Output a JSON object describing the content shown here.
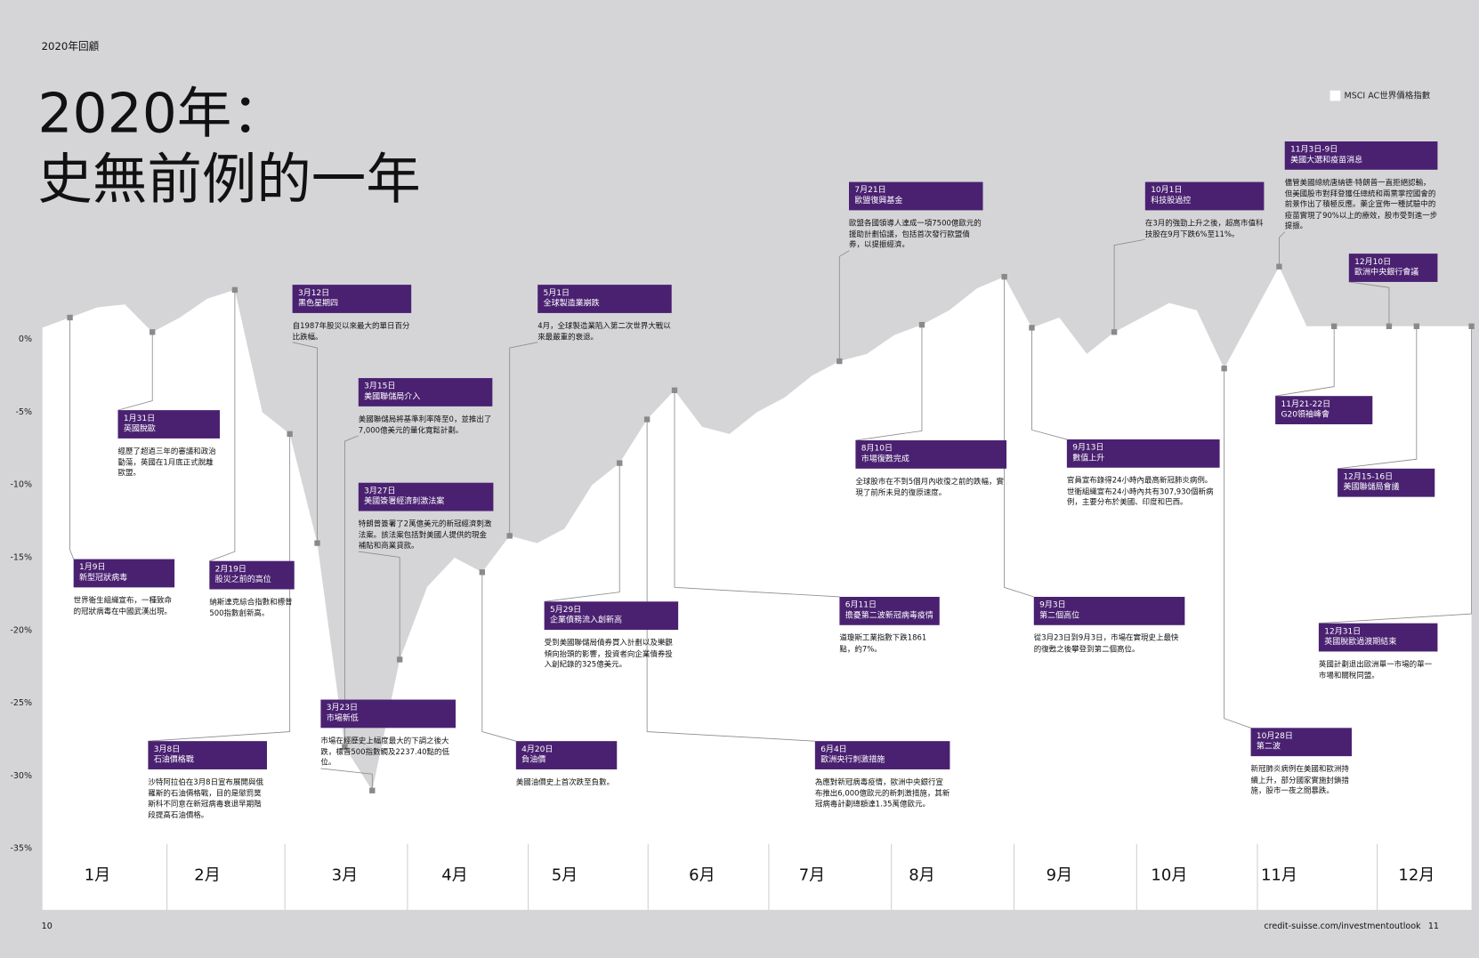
{
  "header": "2020年回顧",
  "title": [
    "2020年：",
    "史無前例的一年"
  ],
  "footer": {
    "left_page": "10",
    "url": "credit-suisse.com/investmentoutlook",
    "right_page": "11"
  },
  "chart_data": {
    "type": "area",
    "categories": [
      null,
      null,
      "1月",
      null,
      null,
      null,
      "2月",
      null,
      null,
      null,
      null,
      "3月",
      null,
      null,
      null,
      "4月",
      null,
      null,
      null,
      "5月",
      null,
      null,
      null,
      null,
      "6月",
      null,
      null,
      null,
      "7月",
      null,
      null,
      null,
      "8月",
      null,
      null,
      null,
      null,
      "9月",
      null,
      null,
      null,
      "10月",
      null,
      null,
      null,
      "11月",
      null,
      null,
      null,
      null,
      "12月",
      null,
      null
    ],
    "series": [
      {
        "name": "MSCI AC世界價格指數",
        "color": "#ffffff",
        "values": [
          0.8,
          1.5,
          2.2,
          2.4,
          0.5,
          1.5,
          2.8,
          3.4,
          -5,
          -6.5,
          -14,
          -28,
          -31,
          -22,
          -17,
          -15,
          -16,
          -13.5,
          -14,
          -13,
          -10,
          -8.5,
          -5.5,
          -3.5,
          -6,
          -6.5,
          -5,
          -4,
          -2.5,
          -1.5,
          -1,
          0.3,
          1,
          2,
          3.5,
          4.3,
          0.8,
          1.5,
          -1,
          0.5,
          1.5,
          2.5,
          2,
          -2,
          1.5,
          5,
          0.9,
          0.9,
          0.9,
          0.9,
          0.9,
          0.9,
          0.9
        ]
      }
    ],
    "ylim": [
      -39.2,
      13.6
    ],
    "yticks": [
      {
        "value": 0,
        "label": "0%"
      },
      {
        "value": -5,
        "label": "-5%"
      },
      {
        "value": -10,
        "label": "-10%"
      },
      {
        "value": -15,
        "label": "-15%"
      },
      {
        "value": -20,
        "label": "-20%"
      },
      {
        "value": -25,
        "label": "-25%"
      },
      {
        "value": -30,
        "label": "-30%"
      },
      {
        "value": -35,
        "label": "-35%"
      }
    ],
    "grid": false,
    "legend": "top-right",
    "annotations": [
      {
        "date": "1月9日",
        "title": "新型冠狀病毒",
        "text": "世界衛生組織宣布，一種致命的冠狀病毒在中國武漢出現。"
      },
      {
        "date": "1月31日",
        "title": "英國脫歐",
        "text": "經歷了超過三年的審議和政治動蕩，英國在1月底正式脫離歐盟。"
      },
      {
        "date": "2月19日",
        "title": "股災之前的高位",
        "text": "納斯達克綜合指數和標普500指數創新高。"
      },
      {
        "date": "3月8日",
        "title": "石油價格戰",
        "text": "沙特阿拉伯在3月8日宣布展開與俄羅斯的石油價格戰，目的是懲罰莫斯科不同意在新冠病毒衰退早期階段提高石油價格。"
      },
      {
        "date": "3月12日",
        "title": "黑色星期四",
        "text": "自1987年股災以來最大的單日百分比跌幅。"
      },
      {
        "date": "3月15日",
        "title": "美國聯儲局介入",
        "text": "美國聯儲局將基準利率降至0，並推出了7,000億美元的量化寬鬆計劃。"
      },
      {
        "date": "3月23日",
        "title": "市場新低",
        "text": "市場在經歷史上幅度最大的下調之後大跌，標普500指數觸及2237.40點的低位。"
      },
      {
        "date": "3月27日",
        "title": "美國簽署經濟刺激法案",
        "text": "特朗普簽署了2萬億美元的新冠經濟刺激法案。該法案包括對美國人提供的現金補貼和商業貸款。"
      },
      {
        "date": "4月20日",
        "title": "負油價",
        "text": "美國油價史上首次跌至負數。"
      },
      {
        "date": "5月1日",
        "title": "全球製造業崩跌",
        "text": "4月，全球製造業陷入第二次世界大戰以來最嚴重的衰退。"
      },
      {
        "date": "5月29日",
        "title": "企業債務流入創新高",
        "text": "受到美國聯儲局債券買入計劃以及樂觀傾向抬頭的影響，投資者向企業債券投入創紀錄的325億美元。"
      },
      {
        "date": "6月4日",
        "title": "歐洲央行刺激措施",
        "text": "為應對新冠病毒疫情，歐洲中央銀行宣布推出6,000億歐元的新刺激措施，其新冠病毒計劃總額達1.35萬億歐元。"
      },
      {
        "date": "6月11日",
        "title": "擔憂第二波新冠病毒疫情",
        "text": "道瓊斯工業指數下跌1861點，約7%。"
      },
      {
        "date": "7月21日",
        "title": "歐盟復興基金",
        "text": "歐盟各國領導人達成一項7500億歐元的援助計劃協議，包括首次發行歐盟債券，以提振經濟。"
      },
      {
        "date": "8月10日",
        "title": "市場復甦完成",
        "text": "全球股市在不到5個月內收復之前的跌幅，實現了前所未見的復原速度。"
      },
      {
        "date": "9月3日",
        "title": "第二個高位",
        "text": "從3月23日到9月3日，市場在實現史上最快的復甦之後攀登到第二個高位。"
      },
      {
        "date": "9月13日",
        "title": "數值上升",
        "text": "官員宣布錄得24小時內最高新冠肺炎病例。世衛組織宣布24小時內共有307,930個新病例，主要分布於美國、印度和巴西。"
      },
      {
        "date": "10月1日",
        "title": "科技股過控",
        "text": "在3月的強勁上升之後，超高市值科技股在9月下跌6%至11%。"
      },
      {
        "date": "10月28日",
        "title": "第二波",
        "text": "新冠肺炎病例在美國和歐洲持續上升，部分國家實施封鎖措施，股市一夜之間暴跌。"
      },
      {
        "date": "11月3日-9日",
        "title": "美國大選和疫苗消息",
        "text": "儘管美國總統唐納德‧特朗普一直拒絕認輸，但美國股市對拜登獲任總統和兩黨掌控國會的前景作出了積極反應。藥企宣佈一種試驗中的疫苗實現了90%以上的療效，股市受到進一步提振。"
      },
      {
        "date": "11月21-22日",
        "title": "G20領袖峰會"
      },
      {
        "date": "12月10日",
        "title": "歐洲中央銀行會議"
      },
      {
        "date": "12月15-16日",
        "title": "美國聯儲局會議"
      },
      {
        "date": "12月31日",
        "title": "英國脫歐過渡期結束",
        "text": "英國計劃退出歐洲單一市場的單一市場和關稅同盟。"
      }
    ]
  }
}
